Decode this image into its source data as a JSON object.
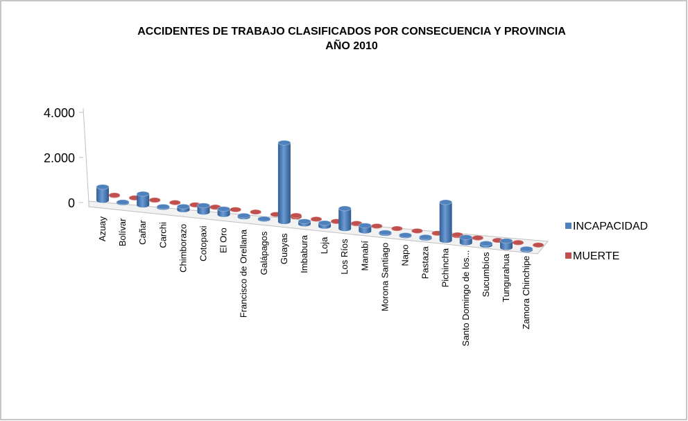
{
  "chart_data": {
    "type": "bar3d",
    "title": [
      "ACCIDENTES DE TRABAJO CLASIFICADOS POR CONSECUENCIA Y PROVINCIA",
      "AÑO 2010"
    ],
    "categories": [
      "Azuay",
      "Bolívar",
      "Cañar",
      "Carchi",
      "Chimborazo",
      "Cotopaxi",
      "El Oro",
      "Francisco de Orellana",
      "Galápagos",
      "Guayas",
      "Imbabura",
      "Loja",
      "Los Ríos",
      "Manabí",
      "Morona Santiago",
      "Napo",
      "Pastaza",
      "Pichincha",
      "Santo Domingo de los...",
      "Sucumbíos",
      "Tungurahua",
      "Zamora Chinchipe"
    ],
    "series": [
      {
        "name": "INCAPACIDAD",
        "color": "#4f81bd",
        "values": [
          600,
          30,
          500,
          40,
          150,
          300,
          250,
          60,
          20,
          3500,
          120,
          150,
          900,
          250,
          40,
          30,
          50,
          1700,
          250,
          80,
          300,
          50
        ]
      },
      {
        "name": "MUERTE",
        "color": "#c0504d",
        "values": [
          20,
          5,
          15,
          5,
          10,
          15,
          10,
          5,
          2,
          60,
          5,
          10,
          25,
          10,
          5,
          3,
          5,
          40,
          10,
          5,
          10,
          5
        ]
      }
    ],
    "ylim": [
      0,
      4000
    ],
    "yticks": [
      0,
      {
        "value": 2000,
        "label": "2.000"
      },
      {
        "value": 4000,
        "label": "4.000"
      }
    ],
    "legend": "right"
  }
}
